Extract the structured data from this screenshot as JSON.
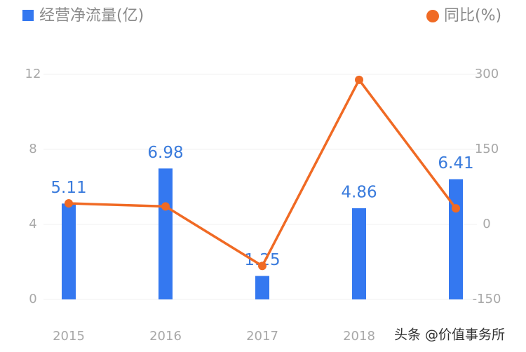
{
  "chart_data": {
    "type": "bar_line",
    "categories": [
      "2015",
      "2016",
      "2017",
      "2018",
      null
    ],
    "series": [
      {
        "name": "经营净流量(亿)",
        "type": "bar",
        "color": "#3478f0",
        "axis": "y",
        "values": [
          5.11,
          6.98,
          1.25,
          4.86,
          6.41
        ]
      },
      {
        "name": "同比(%)",
        "type": "line",
        "color": "#f06a24",
        "axis": "y2",
        "values": [
          42,
          36,
          -83,
          289,
          32
        ]
      }
    ],
    "ylim": [
      0,
      12
    ],
    "yticks": [
      0,
      4,
      8,
      12
    ],
    "y2lim": [
      -150,
      300
    ],
    "y2ticks": [
      -150,
      0,
      150,
      300
    ],
    "grid": true,
    "annotation": "头条 @价值事务所"
  }
}
